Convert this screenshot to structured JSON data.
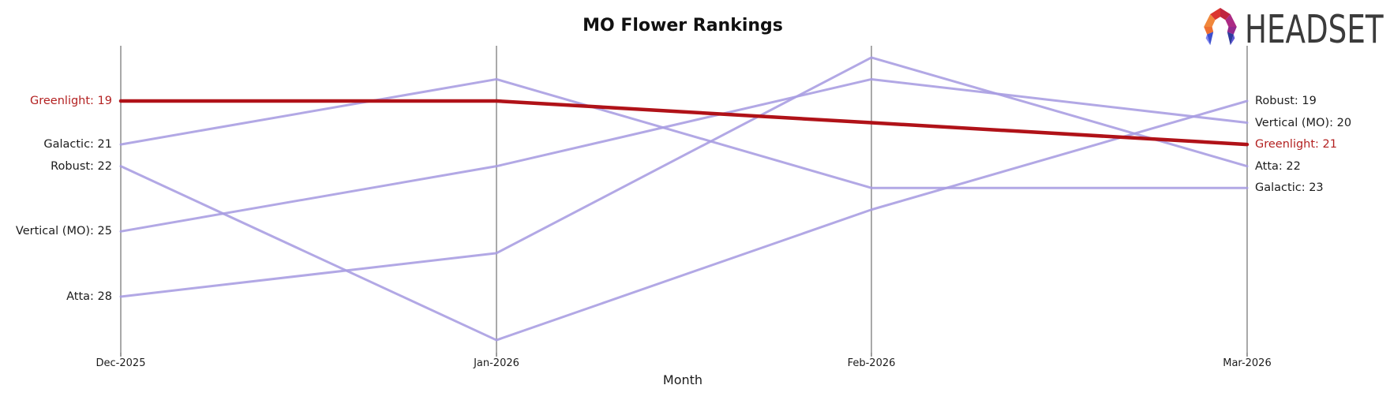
{
  "page": {
    "title": "MO Flower Rankings",
    "xlabel": "Month"
  },
  "logo": {
    "brand": "HEADSET",
    "icon": "headset-faceted-arc-logo-icon"
  },
  "colors": {
    "accent_line": "#b01218",
    "accent_label": "#b32121",
    "series_line": "#a79ce1",
    "axis_line": "#a9a9a9",
    "tick_mark": "#3a3a3a",
    "text": "#1c1c1c",
    "logo_text": "#3b3b3b"
  },
  "chart_data": {
    "type": "line",
    "variant": "rank-bump-parallel-coordinates",
    "title": "MO Flower Rankings",
    "xlabel": "Month",
    "x": [
      "Dec-2025",
      "Jan-2026",
      "Feb-2026",
      "Mar-2026"
    ],
    "y_axis": "sales rank (lower number = higher position, axis inverted, no visible ticks)",
    "ylim_visible": [
      17,
      30
    ],
    "grid": "vertical month axes only",
    "legend": "edge labels at both ends instead of legend box",
    "series": [
      {
        "name": "Galactic",
        "values": [
          21,
          18,
          23,
          23
        ],
        "highlight": false,
        "label_start": "Galactic: 21",
        "label_end": "Galactic: 23"
      },
      {
        "name": "Robust",
        "values": [
          22,
          30,
          24,
          19
        ],
        "highlight": false,
        "label_start": "Robust: 22",
        "label_end": "Robust: 19"
      },
      {
        "name": "Vertical (MO)",
        "values": [
          25,
          22,
          18,
          20
        ],
        "highlight": false,
        "label_start": "Vertical (MO): 25",
        "label_end": "Vertical (MO): 20"
      },
      {
        "name": "Atta",
        "values": [
          28,
          26,
          17,
          22
        ],
        "highlight": false,
        "label_start": "Atta: 28",
        "label_end": "Atta: 22"
      },
      {
        "name": "Greenlight",
        "values": [
          19,
          19,
          20,
          21
        ],
        "highlight": true,
        "label_start": "Greenlight: 19",
        "label_end": "Greenlight: 21"
      }
    ]
  }
}
